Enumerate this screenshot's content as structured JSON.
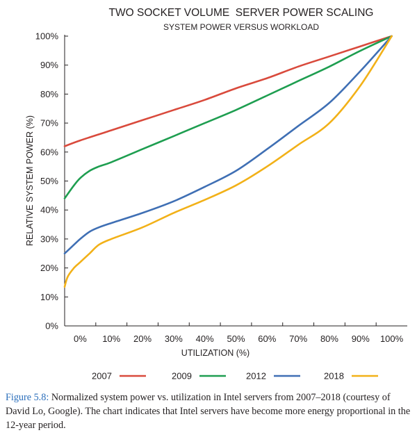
{
  "chart_data": {
    "type": "line",
    "title": "TWO SOCKET VOLUME  SERVER POWER SCALING",
    "subtitle": "SYSTEM POWER VERSUS WORKLOAD",
    "xlabel": "UTILIZATION (%)",
    "ylabel": "RELATIVE SYSTEM POWER (%)",
    "xlim": [
      -5,
      105
    ],
    "ylim": [
      0,
      100
    ],
    "x_ticks": [
      "0%",
      "10%",
      "20%",
      "30%",
      "40%",
      "50%",
      "60%",
      "70%",
      "80%",
      "90%",
      "100%"
    ],
    "y_ticks": [
      "0%",
      "10%",
      "20%",
      "30%",
      "40%",
      "50%",
      "60%",
      "70%",
      "80%",
      "90%",
      "100%"
    ],
    "grid": false,
    "legend_position": "bottom",
    "series": [
      {
        "name": "2007",
        "color": "#d94a3c",
        "x": [
          -5,
          0,
          10,
          20,
          30,
          40,
          50,
          60,
          70,
          80,
          90,
          100
        ],
        "y": [
          62,
          64,
          67.5,
          71,
          74.5,
          78,
          82,
          85.5,
          89.5,
          93,
          96.5,
          100
        ]
      },
      {
        "name": "2009",
        "color": "#1e9e50",
        "x": [
          -5,
          -2,
          0,
          3,
          6,
          10,
          20,
          30,
          40,
          50,
          60,
          70,
          80,
          90,
          100
        ],
        "y": [
          44,
          48.5,
          51,
          53.5,
          55,
          56.5,
          61,
          65.5,
          70,
          74.5,
          79.5,
          84.5,
          89.5,
          95,
          100
        ]
      },
      {
        "name": "2012",
        "color": "#3f6fb4",
        "x": [
          -5,
          -2,
          0,
          3,
          6,
          10,
          20,
          30,
          40,
          50,
          60,
          70,
          80,
          90,
          100
        ],
        "y": [
          25,
          28,
          30,
          32.5,
          34,
          35.5,
          39,
          43,
          48,
          53.5,
          61,
          69,
          77,
          88,
          100
        ]
      },
      {
        "name": "2018",
        "color": "#f2b118",
        "x": [
          -5,
          -4,
          -2,
          0,
          3,
          6,
          10,
          20,
          30,
          40,
          50,
          60,
          70,
          80,
          90,
          100
        ],
        "y": [
          13.5,
          17,
          20,
          22,
          25,
          28,
          30,
          34,
          39,
          43.5,
          48.5,
          55,
          62.5,
          70,
          83,
          100
        ]
      }
    ]
  },
  "caption": {
    "label": "Figure 5.8:",
    "text": " Normalized system power vs. utilization in Intel servers from 2007–2018 (courtesy of David Lo, Google). The chart indicates that Intel servers have become more energy proportional in the 12-year period."
  }
}
